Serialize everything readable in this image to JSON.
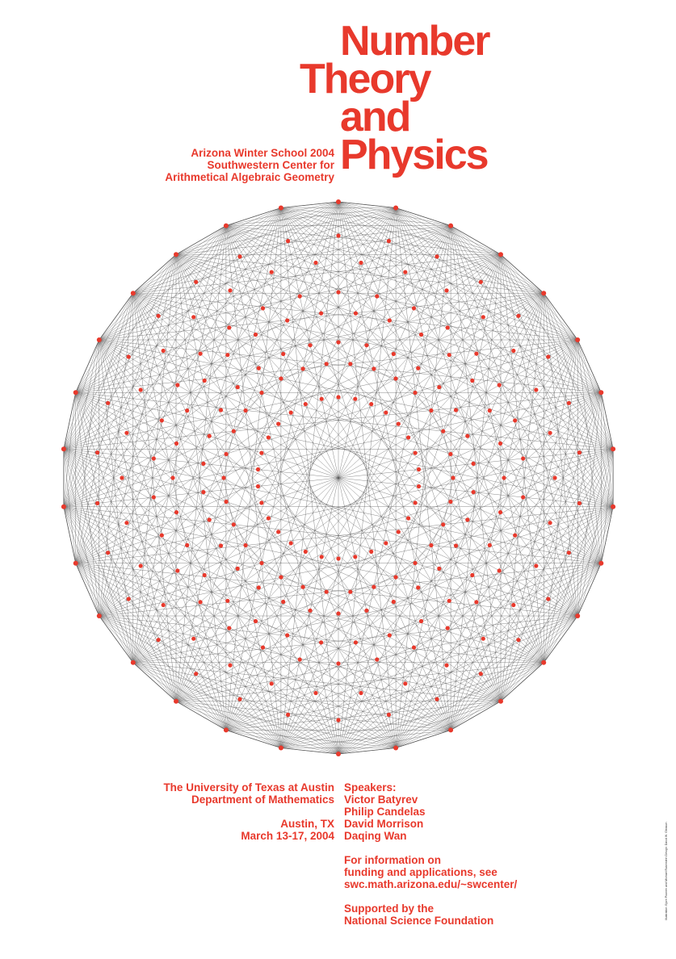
{
  "title": {
    "line1": "Number",
    "line2": "Theory",
    "line3": "and",
    "line4": "Physics"
  },
  "subtitle": {
    "line1": "Arizona Winter School 2004",
    "line2": "Southwestern Center for",
    "line3": "Arithmetical Algebraic Geometry"
  },
  "venue": {
    "university": "The University of Texas at Austin",
    "department": "Department of Mathematics",
    "city": "Austin, TX",
    "dates": "March 13-17, 2004"
  },
  "speakers": {
    "heading": "Speakers:",
    "names": [
      "Victor Batyrev",
      "Philip Candelas",
      "David Morrison",
      "Daqing Wan"
    ]
  },
  "info": {
    "line1": "For information on",
    "line2": "funding and applications, see",
    "url": "swc.math.arizona.edu/~swcenter/"
  },
  "support": {
    "line1": "Supported by the",
    "line2": "National Science Foundation"
  },
  "credit": "Illustration: Bjorn Poonen and Michael Rubinstein   Design: David W. Gleason",
  "colors": {
    "accent": "#e8392c",
    "line": "#555555",
    "background": "#ffffff"
  }
}
